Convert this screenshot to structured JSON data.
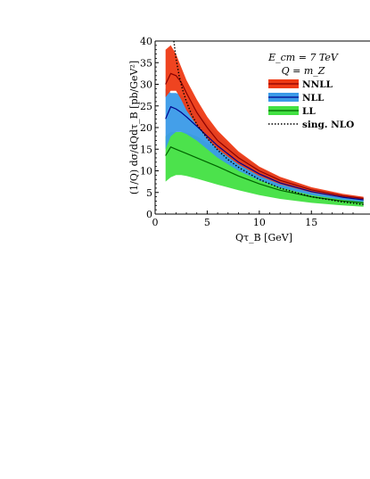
{
  "chart_data": {
    "type": "area",
    "title": "",
    "xlabel": "Qτ_B [GeV]",
    "ylabel": "(1/Q) dσ/dQdτ_B [pb/GeV²]",
    "xlim": [
      0,
      20
    ],
    "ylim": [
      0,
      40
    ],
    "x_ticks": [
      0,
      5,
      10,
      15
    ],
    "y_ticks": [
      0,
      5,
      10,
      15,
      20,
      25,
      30,
      35,
      40
    ],
    "annotations": [
      "E_cm = 7 TeV",
      "Q = m_Z"
    ],
    "legend_position": "top-right",
    "colors": {
      "NNLL": "#ee3a14",
      "NLL": "#3a9ae8",
      "LL": "#42e042",
      "sing_NLO": "#000000"
    },
    "series": [
      {
        "name": "NNLL",
        "kind": "band",
        "x": [
          1.0,
          1.5,
          2.0,
          2.5,
          3.0,
          4.0,
          5.0,
          6.0,
          8.0,
          10.0,
          12.0,
          15.0,
          18.0,
          20.0
        ],
        "lower": [
          27.0,
          28.5,
          28.5,
          26.5,
          24.0,
          20.5,
          17.5,
          15.0,
          11.5,
          8.8,
          6.9,
          5.0,
          3.8,
          3.2
        ],
        "upper": [
          38.0,
          39.0,
          37.0,
          34.0,
          31.0,
          26.5,
          22.5,
          19.3,
          14.5,
          11.0,
          8.6,
          6.2,
          4.7,
          4.0
        ],
        "central": [
          30.0,
          32.5,
          32.0,
          30.5,
          28.0,
          23.5,
          20.0,
          17.0,
          13.0,
          10.0,
          7.8,
          5.6,
          4.2,
          3.6
        ]
      },
      {
        "name": "NLL",
        "kind": "band",
        "x": [
          1.0,
          1.5,
          2.0,
          2.5,
          3.0,
          4.0,
          5.0,
          6.0,
          8.0,
          10.0,
          12.0,
          15.0,
          18.0,
          20.0
        ],
        "lower": [
          15.0,
          18.0,
          19.0,
          19.0,
          18.5,
          17.0,
          15.0,
          13.0,
          10.0,
          7.8,
          6.1,
          4.4,
          3.3,
          2.8
        ],
        "upper": [
          29.0,
          28.0,
          28.0,
          27.5,
          26.5,
          24.0,
          21.0,
          18.5,
          14.0,
          10.8,
          8.4,
          6.0,
          4.5,
          3.9
        ],
        "central": [
          22.0,
          24.8,
          24.3,
          23.5,
          22.5,
          20.3,
          18.0,
          15.8,
          12.0,
          9.3,
          7.2,
          5.2,
          3.9,
          3.3
        ]
      },
      {
        "name": "LL",
        "kind": "band",
        "x": [
          1.0,
          1.5,
          2.0,
          2.5,
          3.0,
          4.0,
          5.0,
          6.0,
          8.0,
          10.0,
          12.0,
          15.0,
          18.0,
          20.0
        ],
        "lower": [
          7.5,
          8.5,
          9.0,
          9.0,
          8.8,
          8.2,
          7.5,
          6.8,
          5.5,
          4.4,
          3.5,
          2.6,
          2.0,
          1.7
        ],
        "upper": [
          18.0,
          19.0,
          19.0,
          19.0,
          18.8,
          18.0,
          16.5,
          15.0,
          11.8,
          9.2,
          7.2,
          5.2,
          3.9,
          3.3
        ],
        "central": [
          13.5,
          15.5,
          15.0,
          14.5,
          14.0,
          13.0,
          12.0,
          11.0,
          8.8,
          7.0,
          5.5,
          4.0,
          3.0,
          2.6
        ]
      },
      {
        "name": "sing. NLO",
        "kind": "line",
        "x": [
          1.8,
          2.0,
          2.3,
          2.6,
          3.0,
          3.5,
          4.0,
          5.0,
          6.0,
          7.0,
          8.0,
          10.0,
          12.0,
          15.0,
          18.0,
          20.0
        ],
        "values": [
          40.0,
          36.0,
          32.0,
          29.0,
          26.0,
          23.0,
          20.8,
          17.5,
          14.8,
          12.6,
          10.8,
          8.0,
          6.0,
          4.0,
          2.8,
          2.2
        ]
      }
    ]
  }
}
